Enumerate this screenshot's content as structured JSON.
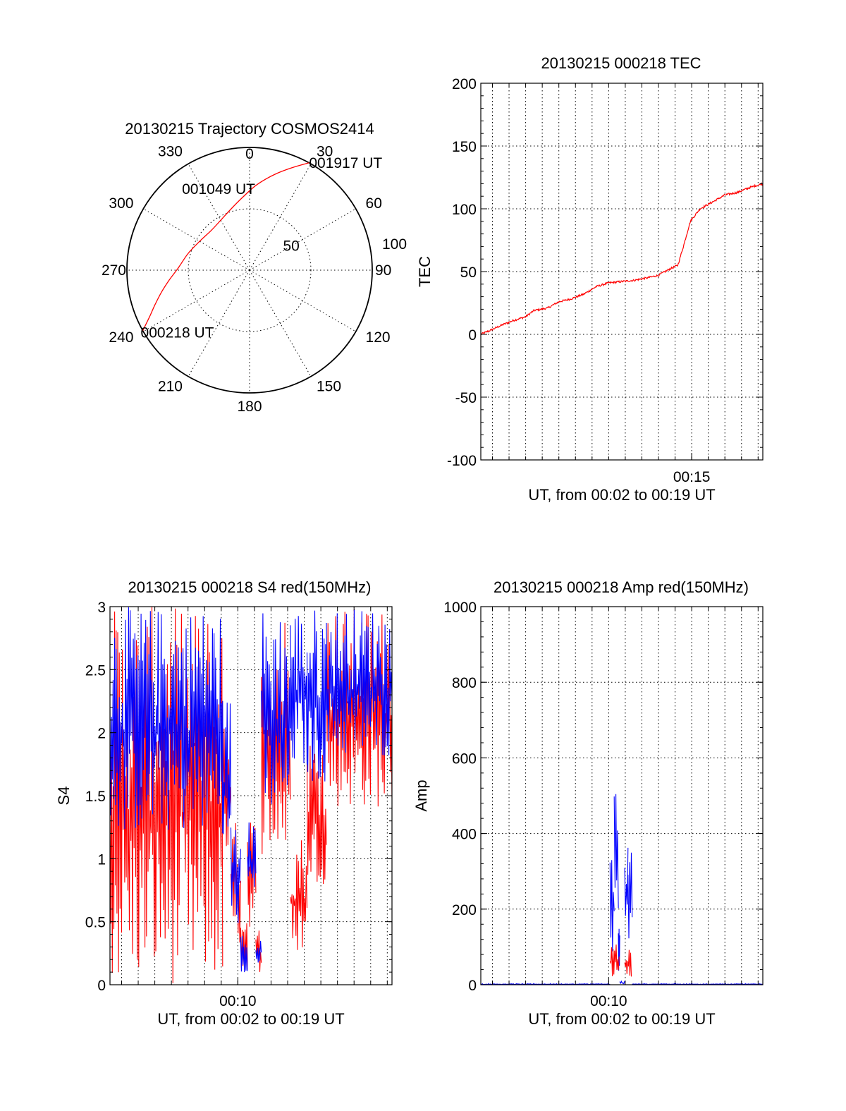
{
  "colors": {
    "red": "#ff0000",
    "blue": "#0000ff",
    "axis": "#000000"
  },
  "chart_data": [
    {
      "type": "polar",
      "title": "20130215 Trajectory COSMOS2414",
      "azimuth_labels": [
        "0",
        "30",
        "60",
        "90",
        "120",
        "150",
        "180",
        "210",
        "240",
        "270",
        "300",
        "330"
      ],
      "radial_labels": [
        "50",
        "100"
      ],
      "rlim": [
        0,
        100
      ],
      "grid": true,
      "series": [
        {
          "color": "#ff0000",
          "points": [
            {
              "az": 240.5,
              "r": 100
            },
            {
              "az": 245,
              "r": 90
            },
            {
              "az": 250,
              "r": 82
            },
            {
              "az": 256,
              "r": 74
            },
            {
              "az": 263,
              "r": 66
            },
            {
              "az": 272,
              "r": 58
            },
            {
              "az": 285,
              "r": 52
            },
            {
              "az": 300,
              "r": 47
            },
            {
              "az": 316,
              "r": 45
            },
            {
              "az": 330,
              "r": 47
            },
            {
              "az": 343,
              "r": 52
            },
            {
              "az": 355,
              "r": 60
            },
            {
              "az": 5,
              "r": 70
            },
            {
              "az": 15,
              "r": 81
            },
            {
              "az": 23,
              "r": 91
            },
            {
              "az": 29,
              "r": 100
            }
          ]
        }
      ],
      "annotations": [
        {
          "text": "001917 UT",
          "az": 29,
          "r": 100
        },
        {
          "text": "001049 UT",
          "az": 330,
          "r": 47
        },
        {
          "text": "000218 UT",
          "az": 240.5,
          "r": 100
        }
      ]
    },
    {
      "type": "line",
      "title": "20130215 000218 TEC",
      "xlabel": "UT, from 00:02 to 00:19 UT",
      "ylabel": "TEC",
      "xlim": [
        "00:02:18",
        "00:19:17"
      ],
      "ylim": [
        -100,
        200
      ],
      "yticks": [
        "-100",
        "-50",
        "0",
        "50",
        "100",
        "150",
        "200"
      ],
      "xtick_labels": [
        {
          "t": "00:15:00",
          "label": "00:15"
        }
      ],
      "grid": true,
      "series": [
        {
          "color": "#ff0000",
          "noise": 0.8,
          "points": [
            [
              "00:02:18",
              0
            ],
            [
              "00:02:50",
              3
            ],
            [
              "00:03:30",
              7
            ],
            [
              "00:04:15",
              11
            ],
            [
              "00:05:00",
              14
            ],
            [
              "00:05:30",
              19
            ],
            [
              "00:06:20",
              21
            ],
            [
              "00:07:00",
              26
            ],
            [
              "00:07:40",
              28
            ],
            [
              "00:08:30",
              32
            ],
            [
              "00:09:15",
              38
            ],
            [
              "00:10:00",
              41
            ],
            [
              "00:10:45",
              42
            ],
            [
              "00:11:30",
              43
            ],
            [
              "00:12:20",
              45
            ],
            [
              "00:13:00",
              47
            ],
            [
              "00:13:40",
              52
            ],
            [
              "00:14:10",
              55
            ],
            [
              "00:14:30",
              70
            ],
            [
              "00:14:55",
              90
            ],
            [
              "00:15:30",
              100
            ],
            [
              "00:16:20",
              106
            ],
            [
              "00:17:00",
              111
            ],
            [
              "00:17:45",
              113
            ],
            [
              "00:18:30",
              117
            ],
            [
              "00:19:17",
              120
            ]
          ]
        }
      ]
    },
    {
      "type": "line",
      "title": "20130215 000218 S4 red(150MHz)",
      "xlabel": "UT, from 00:02 to 00:19 UT",
      "ylabel": "S4",
      "xlim": [
        "00:02:18",
        "00:19:17"
      ],
      "ylim": [
        0,
        3
      ],
      "yticks": [
        "0",
        "0.5",
        "1",
        "1.5",
        "2",
        "2.5",
        "3"
      ],
      "xtick_labels": [
        {
          "t": "00:10:00",
          "label": "00:10"
        }
      ],
      "grid": true,
      "series": [
        {
          "color": "#ff0000",
          "envelope": [
            {
              "start": "00:02:18",
              "end": "00:09:05",
              "lo": 0.0,
              "hi": 3.0
            },
            {
              "start": "00:09:05",
              "end": "00:09:35",
              "lo": 0.9,
              "hi": 2.2
            },
            {
              "start": "00:09:35",
              "end": "00:10:10",
              "lo": 0.3,
              "hi": 1.3
            },
            {
              "start": "00:10:10",
              "end": "00:10:35",
              "lo": 0.08,
              "hi": 0.5
            },
            {
              "start": "00:10:35",
              "end": "00:11:05",
              "lo": 0.45,
              "hi": 1.3
            },
            {
              "start": "00:11:05",
              "end": "00:11:25",
              "lo": 0.1,
              "hi": 0.45
            },
            {
              "start": "00:11:25",
              "end": "00:13:10",
              "lo": 1.0,
              "hi": 3.0
            },
            {
              "start": "00:13:10",
              "end": "00:14:10",
              "lo": 0.25,
              "hi": 1.2
            },
            {
              "start": "00:14:10",
              "end": "00:15:20",
              "lo": 0.8,
              "hi": 2.0
            },
            {
              "start": "00:15:20",
              "end": "00:19:17",
              "lo": 1.4,
              "hi": 3.0
            }
          ]
        },
        {
          "color": "#0000ff",
          "envelope": [
            {
              "start": "00:02:18",
              "end": "00:09:05",
              "lo": 1.2,
              "hi": 3.0
            },
            {
              "start": "00:09:05",
              "end": "00:09:35",
              "lo": 1.0,
              "hi": 2.3
            },
            {
              "start": "00:09:35",
              "end": "00:10:10",
              "lo": 0.45,
              "hi": 1.4
            },
            {
              "start": "00:10:10",
              "end": "00:10:35",
              "lo": 0.1,
              "hi": 0.4
            },
            {
              "start": "00:10:35",
              "end": "00:11:05",
              "lo": 0.7,
              "hi": 1.3
            },
            {
              "start": "00:11:05",
              "end": "00:11:25",
              "lo": 0.15,
              "hi": 0.4
            },
            {
              "start": "00:11:25",
              "end": "00:13:10",
              "lo": 1.3,
              "hi": 3.0
            },
            {
              "start": "00:13:10",
              "end": "00:14:10",
              "lo": 1.7,
              "hi": 3.0
            },
            {
              "start": "00:14:10",
              "end": "00:15:20",
              "lo": 1.6,
              "hi": 3.0
            },
            {
              "start": "00:15:20",
              "end": "00:19:17",
              "lo": 1.8,
              "hi": 3.0
            }
          ]
        }
      ]
    },
    {
      "type": "line",
      "title": "20130215 000218 Amp red(150MHz)",
      "xlabel": "UT, from 00:02 to 00:19 UT",
      "ylabel": "Amp",
      "xlim": [
        "00:02:18",
        "00:19:17"
      ],
      "ylim": [
        0,
        1000
      ],
      "yticks": [
        "0",
        "200",
        "400",
        "600",
        "800",
        "1000"
      ],
      "xtick_labels": [
        {
          "t": "00:10:00",
          "label": "00:10"
        }
      ],
      "grid": true,
      "series": [
        {
          "color": "#0000ff",
          "envelope": [
            {
              "start": "00:02:18",
              "end": "00:10:05",
              "lo": 0,
              "hi": 3
            },
            {
              "start": "00:10:05",
              "end": "00:10:20",
              "lo": 80,
              "hi": 350
            },
            {
              "start": "00:10:20",
              "end": "00:10:35",
              "lo": 200,
              "hi": 550
            },
            {
              "start": "00:10:35",
              "end": "00:10:40",
              "lo": 30,
              "hi": 200
            },
            {
              "start": "00:10:40",
              "end": "00:10:58",
              "lo": 0,
              "hi": 10
            },
            {
              "start": "00:10:58",
              "end": "00:11:10",
              "lo": 120,
              "hi": 420
            },
            {
              "start": "00:11:10",
              "end": "00:11:25",
              "lo": 80,
              "hi": 350
            },
            {
              "start": "00:11:25",
              "end": "00:19:17",
              "lo": 0,
              "hi": 3
            }
          ]
        },
        {
          "color": "#ff0000",
          "envelope": [
            {
              "start": "00:10:05",
              "end": "00:10:38",
              "lo": 20,
              "hi": 110
            },
            {
              "start": "00:10:58",
              "end": "00:11:22",
              "lo": 20,
              "hi": 100
            }
          ]
        }
      ]
    }
  ]
}
